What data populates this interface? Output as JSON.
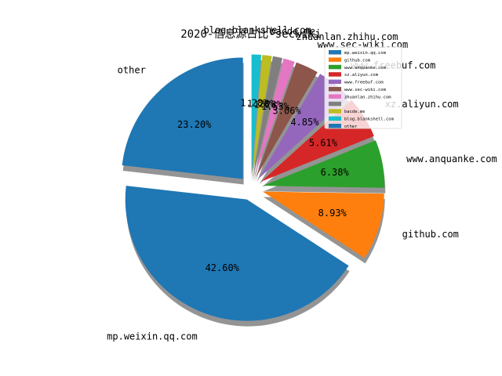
{
  "chart_data": {
    "type": "pie",
    "title": "2020-信息源占比-secwiki",
    "shadow": true,
    "start_angle_deg": 90,
    "direction": "counterclockwise",
    "legend_position": "top-right",
    "slices": [
      {
        "label": "other",
        "legend": "other",
        "value": 23.2,
        "pct_text": "23.20%",
        "color": "#1f77b4"
      },
      {
        "label": "mp.weixin.qq.com",
        "legend": "mp.weixin.qq.com",
        "value": 42.6,
        "pct_text": "42.60%",
        "color": "#1f77b4"
      },
      {
        "label": "github.com",
        "legend": "github.com",
        "value": 8.93,
        "pct_text": "8.93%",
        "color": "#ff7f0e"
      },
      {
        "label": "www.anquanke.com",
        "legend": "www.anquanke.com",
        "value": 6.38,
        "pct_text": "6.38%",
        "color": "#2ca02c"
      },
      {
        "label": "xz.aliyun.com",
        "legend": "xz.aliyun.com",
        "value": 5.61,
        "pct_text": "5.61%",
        "color": "#d62728"
      },
      {
        "label": "www.freebuf.com",
        "legend": "www.freebuf.com",
        "value": 4.85,
        "pct_text": "4.85%",
        "color": "#9467bd"
      },
      {
        "label": "www.sec-wiki.com",
        "legend": "www.sec-wiki.com",
        "value": 3.06,
        "pct_text": "3.06%",
        "color": "#8c564b"
      },
      {
        "label": "zhuanlan.zhihu.com",
        "legend": "zhuanlan.zhihu.com",
        "value": 1.53,
        "pct_text": "1.53%",
        "color": "#e377c2"
      },
      {
        "label": "",
        "legend": "",
        "value": 1.28,
        "pct_text": "1.28%",
        "color": "#7f7f7f"
      },
      {
        "label": "bacde.me",
        "legend": "bacde.me",
        "value": 1.28,
        "pct_text": "1.28%",
        "color": "#bcbd22"
      },
      {
        "label": "blog.blankshell.com",
        "legend": "blog.blankshell.com",
        "value": 1.28,
        "pct_text": "1.28%",
        "color": "#17becf"
      }
    ],
    "legend_order": [
      "mp.weixin.qq.com",
      "github.com",
      "www.anquanke.com",
      "xz.aliyun.com",
      "www.freebuf.com",
      "www.sec-wiki.com",
      "zhuanlan.zhihu.com",
      "",
      "bacde.me",
      "blog.blankshell.com",
      "other"
    ]
  }
}
